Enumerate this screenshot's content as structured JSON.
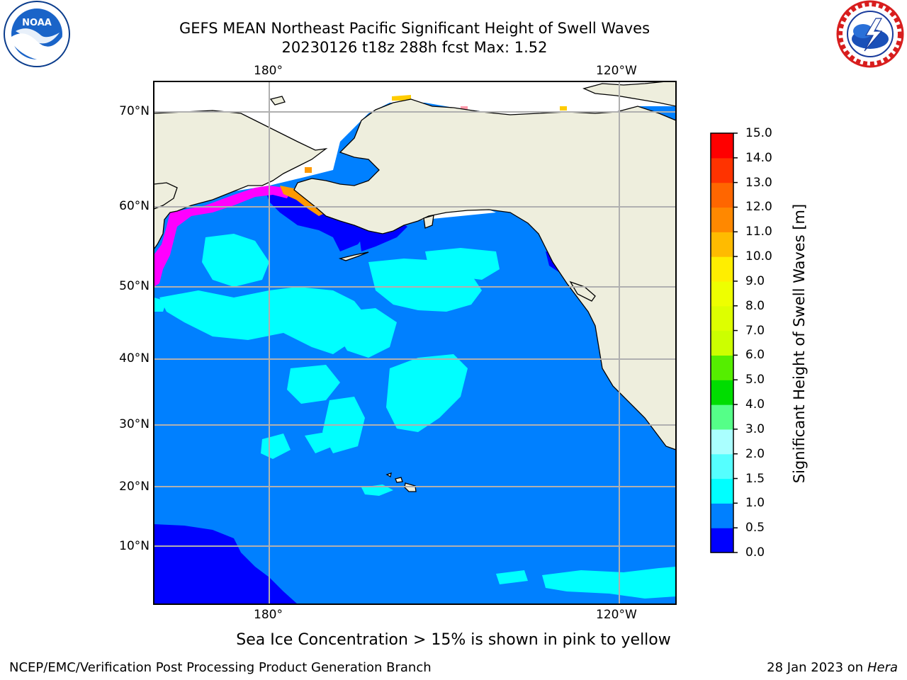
{
  "title": {
    "line1": "GEFS MEAN Northeast Pacific Significant Height of Swell Waves",
    "line2": "20230126 t18z 288h fcst   Max: 1.52"
  },
  "map": {
    "lon_labels_top": [
      "180°",
      "120°W"
    ],
    "lon_labels_bottom": [
      "180°",
      "120°W"
    ],
    "lat_labels": [
      "70°N",
      "60°N",
      "50°N",
      "40°N",
      "30°N",
      "20°N",
      "10°N"
    ],
    "colors": {
      "land": "#eeeedd",
      "ocean_base": "#0080ff",
      "ocean_calm": "#0000ff",
      "ocean_swell": "#00ffff",
      "sea_ice_pink": "#ff00ff",
      "sea_ice_orange": "#ff9900",
      "sea_ice_yellow": "#ffcc00",
      "no_data": "#ffffff",
      "gridline": "#b0b0b0"
    }
  },
  "colorbar": {
    "title": "Significant Height of Swell Waves [m]",
    "bins": [
      {
        "lower": 0.0,
        "upper": 0.5,
        "color": "#0000ff"
      },
      {
        "lower": 0.5,
        "upper": 1.0,
        "color": "#0080ff"
      },
      {
        "lower": 1.0,
        "upper": 1.5,
        "color": "#00ffff"
      },
      {
        "lower": 1.5,
        "upper": 2.0,
        "color": "#55ffff"
      },
      {
        "lower": 2.0,
        "upper": 3.0,
        "color": "#aaffff"
      },
      {
        "lower": 3.0,
        "upper": 4.0,
        "color": "#55ff88"
      },
      {
        "lower": 4.0,
        "upper": 5.0,
        "color": "#00dd00"
      },
      {
        "lower": 5.0,
        "upper": 6.0,
        "color": "#55ee00"
      },
      {
        "lower": 6.0,
        "upper": 7.0,
        "color": "#ccff00"
      },
      {
        "lower": 7.0,
        "upper": 8.0,
        "color": "#ddff00"
      },
      {
        "lower": 8.0,
        "upper": 9.0,
        "color": "#eeff00"
      },
      {
        "lower": 9.0,
        "upper": 10.0,
        "color": "#ffee00"
      },
      {
        "lower": 10.0,
        "upper": 11.0,
        "color": "#ffbb00"
      },
      {
        "lower": 11.0,
        "upper": 12.0,
        "color": "#ff8800"
      },
      {
        "lower": 12.0,
        "upper": 13.0,
        "color": "#ff6600"
      },
      {
        "lower": 13.0,
        "upper": 14.0,
        "color": "#ff3300"
      },
      {
        "lower": 14.0,
        "upper": 15.0,
        "color": "#ff0000"
      }
    ],
    "tick_labels": [
      "0.0",
      "0.5",
      "1.0",
      "1.5",
      "2.0",
      "3.0",
      "4.0",
      "5.0",
      "6.0",
      "7.0",
      "8.0",
      "9.0",
      "10.0",
      "11.0",
      "12.0",
      "13.0",
      "14.0",
      "15.0"
    ]
  },
  "logos": {
    "left": "noaa-logo",
    "right": "nws-logo"
  },
  "note": "Sea Ice Concentration > 15% is shown in pink to yellow",
  "footer": {
    "left": "NCEP/EMC/Verification Post Processing Product Generation Branch",
    "right_prefix": "28 Jan 2023 on ",
    "right_host": "Hera"
  }
}
